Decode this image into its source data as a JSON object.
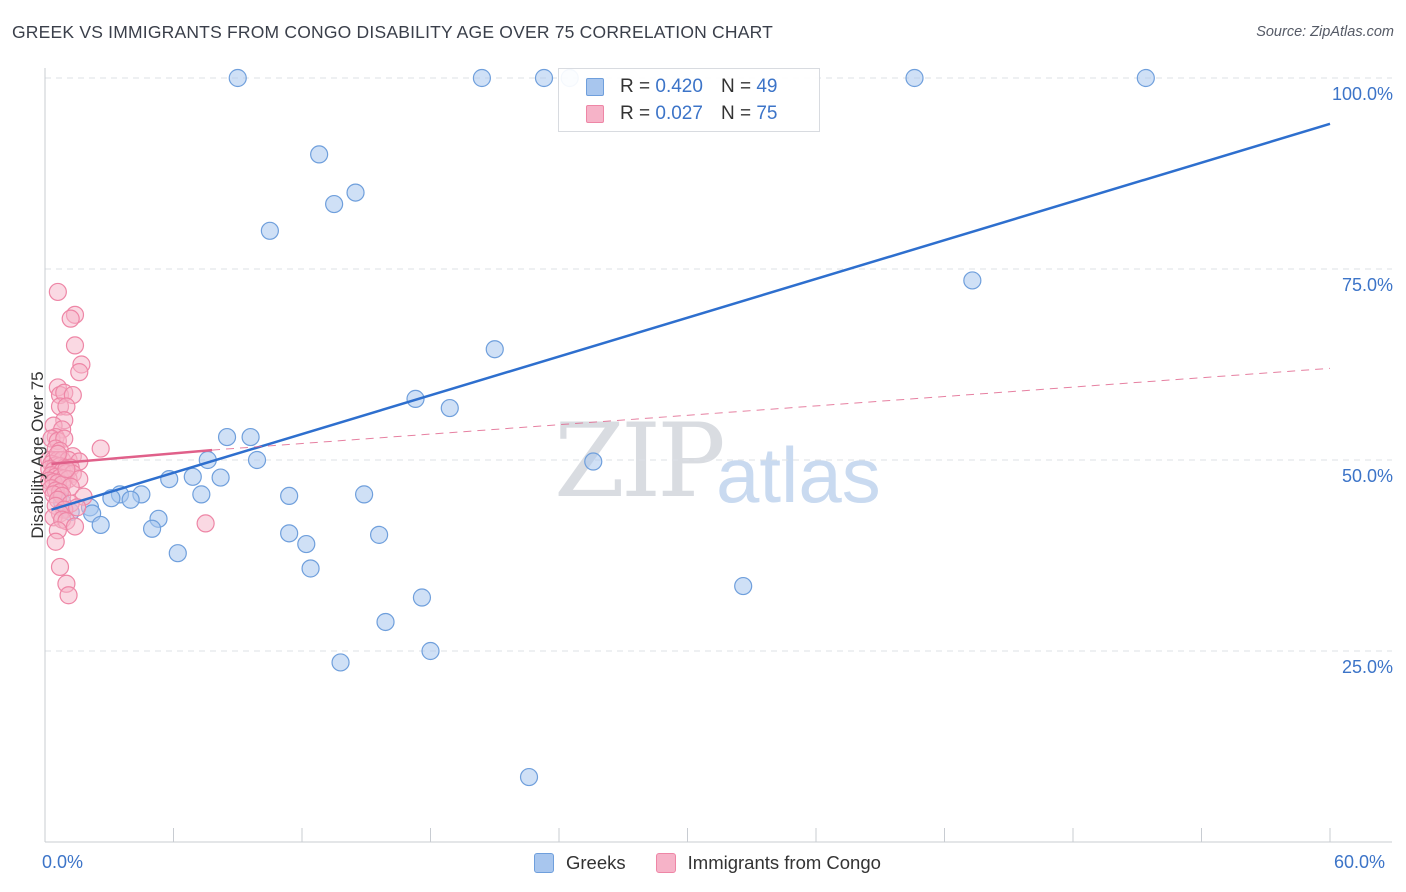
{
  "title": "GREEK VS IMMIGRANTS FROM CONGO DISABILITY AGE OVER 75 CORRELATION CHART",
  "source": "Source: ZipAtlas.com",
  "watermark": {
    "zip": "ZIP",
    "atlas": "atlas"
  },
  "legend_top": {
    "rows": [
      {
        "r_label": "R =",
        "r_value": "0.420",
        "n_label": "N =",
        "n_value": "49"
      },
      {
        "r_label": "R =",
        "r_value": "0.027",
        "n_label": "N =",
        "n_value": "75"
      }
    ]
  },
  "legend_bottom": {
    "greeks": "Greeks",
    "congo": "Immigrants from Congo"
  },
  "colors": {
    "blue_fill": "#a8c6ee",
    "blue_stroke": "#6f9fdc",
    "blue_line": "#2e6fce",
    "pink_fill": "#f6b3c8",
    "pink_stroke": "#ee86a6",
    "pink_line": "#e0608a",
    "tick_text": "#3c74c8",
    "grid": "#dde1e6"
  },
  "chart_data": {
    "type": "scatter",
    "title": "GREEK VS IMMIGRANTS FROM CONGO DISABILITY AGE OVER 75 CORRELATION CHART",
    "xlabel": "",
    "ylabel": "Disability Age Over 75",
    "xlim": [
      0,
      60
    ],
    "ylim": [
      0,
      105
    ],
    "x_tick_labels": [
      "0.0%",
      "60.0%"
    ],
    "y_ticks": [
      25,
      50,
      75,
      100
    ],
    "y_tick_labels": [
      "25.0%",
      "50.0%",
      "75.0%",
      "100.0%"
    ],
    "series": [
      {
        "name": "Greeks",
        "r": 0.42,
        "n": 49,
        "trend": {
          "x": [
            0.3,
            60
          ],
          "y": [
            43.5,
            94
          ]
        },
        "points": [
          [
            9,
            100
          ],
          [
            20.4,
            100
          ],
          [
            23.3,
            100
          ],
          [
            24.5,
            100
          ],
          [
            40.6,
            100
          ],
          [
            51.4,
            100
          ],
          [
            12.8,
            90
          ],
          [
            13.5,
            83.5
          ],
          [
            14.5,
            85
          ],
          [
            10.5,
            80
          ],
          [
            43.3,
            73.5
          ],
          [
            21,
            64.5
          ],
          [
            17.3,
            58
          ],
          [
            18.9,
            56.8
          ],
          [
            8.5,
            53
          ],
          [
            9.6,
            53
          ],
          [
            7.6,
            50
          ],
          [
            9.9,
            50
          ],
          [
            25.6,
            49.8
          ],
          [
            5.8,
            47.5
          ],
          [
            6.9,
            47.8
          ],
          [
            8.2,
            47.7
          ],
          [
            7.3,
            45.5
          ],
          [
            11.4,
            45.3
          ],
          [
            14.9,
            45.5
          ],
          [
            0.8,
            44.5
          ],
          [
            3.5,
            45.5
          ],
          [
            4.5,
            45.5
          ],
          [
            4,
            44.8
          ],
          [
            2.1,
            43.8
          ],
          [
            0.9,
            43.5
          ],
          [
            1.2,
            43.2
          ],
          [
            2.2,
            43
          ],
          [
            5.3,
            42.3
          ],
          [
            2.6,
            41.5
          ],
          [
            5,
            41
          ],
          [
            11.4,
            40.4
          ],
          [
            15.6,
            40.2
          ],
          [
            12.2,
            39
          ],
          [
            6.2,
            37.8
          ],
          [
            12.4,
            35.8
          ],
          [
            32.6,
            33.5
          ],
          [
            17.6,
            32
          ],
          [
            15.9,
            28.8
          ],
          [
            13.8,
            23.5
          ],
          [
            18,
            25
          ],
          [
            22.6,
            8.5
          ],
          [
            0.7,
            46
          ],
          [
            3.1,
            45
          ]
        ]
      },
      {
        "name": "Immigrants from Congo",
        "r": 0.027,
        "n": 75,
        "trend_solid": {
          "x": [
            0.3,
            7.8
          ],
          "y": [
            49.5,
            51.3
          ]
        },
        "trend_dashed": {
          "x": [
            7.8,
            60
          ],
          "y": [
            51.3,
            62
          ]
        },
        "points": [
          [
            0.6,
            72
          ],
          [
            1.4,
            69
          ],
          [
            1.2,
            68.5
          ],
          [
            1.4,
            65
          ],
          [
            1.7,
            62.5
          ],
          [
            1.6,
            61.5
          ],
          [
            0.6,
            59.5
          ],
          [
            0.7,
            58.5
          ],
          [
            0.9,
            58.8
          ],
          [
            1.3,
            58.5
          ],
          [
            0.7,
            57
          ],
          [
            1.0,
            57
          ],
          [
            0.9,
            55.2
          ],
          [
            0.4,
            54.5
          ],
          [
            0.8,
            54
          ],
          [
            0.5,
            53
          ],
          [
            0.3,
            52.8
          ],
          [
            0.6,
            52.5
          ],
          [
            0.9,
            52.8
          ],
          [
            0.5,
            51.5
          ],
          [
            0.7,
            51.2
          ],
          [
            2.6,
            51.5
          ],
          [
            1.3,
            50.5
          ],
          [
            0.2,
            50
          ],
          [
            0.4,
            50
          ],
          [
            0.6,
            50
          ],
          [
            0.8,
            50
          ],
          [
            1.1,
            50
          ],
          [
            1.6,
            49.8
          ],
          [
            0.3,
            49.5
          ],
          [
            0.5,
            49.3
          ],
          [
            0.7,
            49.2
          ],
          [
            0.9,
            49
          ],
          [
            1.2,
            49
          ],
          [
            0.2,
            48.8
          ],
          [
            0.4,
            48.6
          ],
          [
            0.6,
            48.4
          ],
          [
            0.8,
            48.5
          ],
          [
            1.0,
            48.3
          ],
          [
            1.3,
            48.2
          ],
          [
            0.3,
            48
          ],
          [
            0.5,
            47.8
          ],
          [
            0.7,
            47.7
          ],
          [
            0.9,
            47.6
          ],
          [
            1.1,
            47.5
          ],
          [
            1.6,
            47.5
          ],
          [
            0.2,
            47.3
          ],
          [
            0.4,
            47.1
          ],
          [
            0.6,
            47
          ],
          [
            0.8,
            46.8
          ],
          [
            1.2,
            46.5
          ],
          [
            0.3,
            46.3
          ],
          [
            0.5,
            46
          ],
          [
            0.7,
            45.8
          ],
          [
            0.4,
            45.5
          ],
          [
            0.8,
            45.3
          ],
          [
            1.8,
            45.2
          ],
          [
            0.6,
            44.8
          ],
          [
            1.2,
            44.3
          ],
          [
            0.5,
            44
          ],
          [
            0.9,
            43.5
          ],
          [
            1.5,
            43.8
          ],
          [
            0.7,
            43
          ],
          [
            0.4,
            42.5
          ],
          [
            0.8,
            42.2
          ],
          [
            1.0,
            42
          ],
          [
            7.5,
            41.7
          ],
          [
            1.4,
            41.3
          ],
          [
            0.6,
            40.8
          ],
          [
            0.5,
            39.3
          ],
          [
            0.7,
            36
          ],
          [
            1.0,
            33.8
          ],
          [
            1.1,
            32.3
          ],
          [
            0.6,
            50.8
          ],
          [
            1.0,
            48.8
          ]
        ]
      }
    ]
  }
}
